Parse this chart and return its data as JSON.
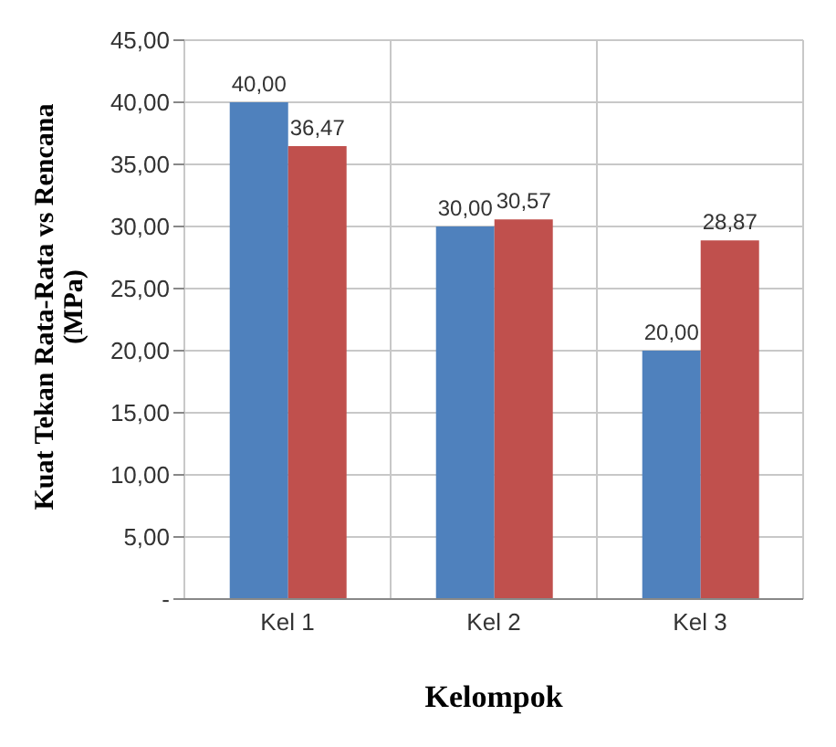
{
  "chart_data": {
    "type": "bar",
    "xlabel": "Kelompok",
    "ylabel": "Kuat Tekan Rata-Rata vs Rencana (MPa)",
    "categories": [
      "Kel 1",
      "Kel 2",
      "Kel 3"
    ],
    "series": [
      {
        "color": "#4f81bd",
        "values": [
          40,
          30,
          20
        ],
        "value_labels": [
          "40,00",
          "30,00",
          "20,00"
        ]
      },
      {
        "color": "#c0504d",
        "values": [
          36.47,
          30.57,
          28.87
        ],
        "value_labels": [
          "36,47",
          "30,57",
          "28,87"
        ]
      }
    ],
    "ylim": [
      0,
      45
    ],
    "yticks": [
      {
        "value": 0,
        "label": "-"
      },
      {
        "value": 5,
        "label": "5,00"
      },
      {
        "value": 10,
        "label": "10,00"
      },
      {
        "value": 15,
        "label": "15,00"
      },
      {
        "value": 20,
        "label": "20,00"
      },
      {
        "value": 25,
        "label": "25,00"
      },
      {
        "value": 30,
        "label": "30,00"
      },
      {
        "value": 35,
        "label": "35,00"
      },
      {
        "value": 40,
        "label": "40,00"
      },
      {
        "value": 45,
        "label": "45,00"
      }
    ],
    "grid": true,
    "legend": false
  }
}
